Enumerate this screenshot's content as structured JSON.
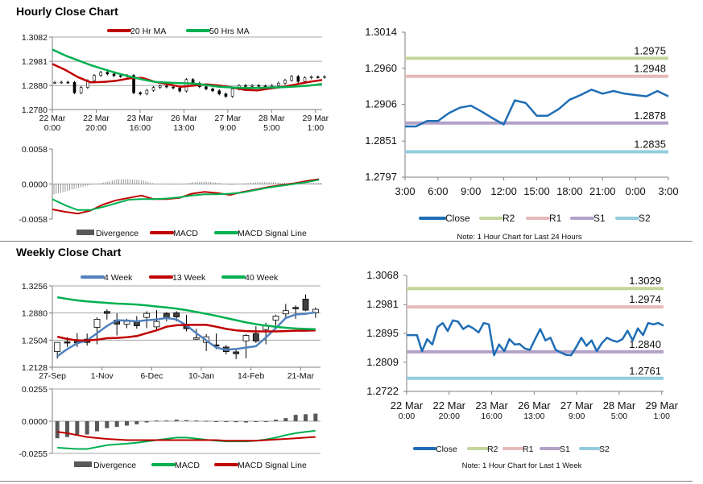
{
  "colors": {
    "ma20": "#c00000",
    "ma50": "#00b050",
    "wk4": "#4f81bd",
    "wk13": "#c00000",
    "wk40": "#00b050",
    "macd_red": "#c00000",
    "macd_green": "#00b050",
    "divergence": "#595959",
    "close": "#1f6eb5",
    "R2": "#c3d69b",
    "R1": "#e6b9b8",
    "S1": "#b3a2c7",
    "S2": "#93cddd",
    "grid": "#a6a6a6"
  },
  "chart_data": [
    {
      "id": "hourly_price",
      "type": "candlestick+line",
      "title": "Hourly Close Chart",
      "grid": true,
      "legend": "top",
      "ylim": [
        1.278,
        1.3082
      ],
      "yticks": [
        "1.3082",
        "1.2981",
        "1.2880",
        "1.2780"
      ],
      "xticks": [
        "22 Mar|0:00",
        "22 Mar|20:00",
        "23 Mar|16:00",
        "26 Mar|13:00",
        "27 Mar|9:00",
        "28 Mar|5:00",
        "29 Mar|1:00"
      ],
      "close": [
        1.2893,
        1.2894,
        1.2893,
        1.285,
        1.2872,
        1.29,
        1.2922,
        1.2935,
        1.2928,
        1.2921,
        1.2918,
        1.2922,
        1.285,
        1.2845,
        1.286,
        1.2872,
        1.2878,
        1.2874,
        1.287,
        1.2857,
        1.2905,
        1.289,
        1.2875,
        1.2866,
        1.2858,
        1.2845,
        1.2835,
        1.2866,
        1.288,
        1.2876,
        1.288,
        1.2878,
        1.2876,
        1.288,
        1.289,
        1.2902,
        1.2918,
        1.2897,
        1.2912,
        1.2916,
        1.2915,
        1.2917
      ],
      "series": [
        {
          "name": "20 Hr MA",
          "color_key": "ma20",
          "values": [
            1.297,
            1.2945,
            1.2915,
            1.2893,
            1.2895,
            1.29,
            1.291,
            1.2912,
            1.2895,
            1.2885,
            1.2875,
            1.288,
            1.2885,
            1.288,
            1.2872,
            1.2862,
            1.286,
            1.2868,
            1.2875,
            1.2885,
            1.2895,
            1.2903
          ]
        },
        {
          "name": "50 Hrs MA",
          "color_key": "ma50",
          "values": [
            1.303,
            1.3005,
            1.2985,
            1.2965,
            1.2948,
            1.2932,
            1.2918,
            1.2905,
            1.2895,
            1.2892,
            1.289,
            1.2888,
            1.2882,
            1.2875,
            1.2872,
            1.287,
            1.287,
            1.2872,
            1.2873,
            1.2876,
            1.288,
            1.2886
          ]
        }
      ]
    },
    {
      "id": "hourly_macd",
      "type": "bar+line",
      "ylim": [
        -0.0058,
        0.0058
      ],
      "yticks": [
        "0.0058",
        "0.0000",
        "-0.0058"
      ],
      "legend": "bottom",
      "divergence": {
        "name": "Divergence",
        "values": [
          -0.0017,
          -0.0012,
          -0.0006,
          -0.0001,
          0.0003,
          0.0008,
          0.0008,
          0.0006,
          0.0,
          -0.0001,
          -0.0001,
          0.0003,
          0.0004,
          0.0002,
          -0.0002,
          0.0001,
          0.0003,
          0.0003,
          0.0002,
          0.0002,
          0.0002,
          0.0002
        ]
      },
      "series": [
        {
          "name": "MACD",
          "color_key": "macd_red",
          "values": [
            -0.0042,
            -0.0046,
            -0.0049,
            -0.0044,
            -0.0034,
            -0.0027,
            -0.0023,
            -0.0019,
            -0.0025,
            -0.0025,
            -0.0023,
            -0.0016,
            -0.0013,
            -0.0015,
            -0.0018,
            -0.0013,
            -0.0009,
            -0.0005,
            -0.0002,
            0.0001,
            0.0005,
            0.0008
          ]
        },
        {
          "name": "MACD Signal Line",
          "color_key": "macd_green",
          "values": [
            -0.0025,
            -0.0035,
            -0.0043,
            -0.0043,
            -0.0038,
            -0.0032,
            -0.0026,
            -0.0025,
            -0.0025,
            -0.0024,
            -0.0022,
            -0.0019,
            -0.0017,
            -0.0017,
            -0.0016,
            -0.0014,
            -0.001,
            -0.0006,
            -0.0003,
            0.0,
            0.0003,
            0.0007
          ]
        }
      ]
    },
    {
      "id": "pivot_24h",
      "type": "line",
      "ylim": [
        1.2797,
        1.3014
      ],
      "yticks": [
        "1.3014",
        "1.2960",
        "1.2906",
        "1.2851",
        "1.2797"
      ],
      "xticks": [
        "3:00",
        "6:00",
        "9:00",
        "12:00",
        "15:00",
        "18:00",
        "21:00",
        "0:00",
        "3:00"
      ],
      "legend": "bottom",
      "note": "Note: 1 Hour Chart for Last 24 Hours",
      "close": {
        "name": "Close",
        "values": [
          1.2873,
          1.2873,
          1.2881,
          1.2881,
          1.2893,
          1.2901,
          1.2904,
          1.2895,
          1.2885,
          1.2876,
          1.2912,
          1.2908,
          1.2889,
          1.2889,
          1.2899,
          1.2913,
          1.292,
          1.2928,
          1.2922,
          1.2926,
          1.2922,
          1.292,
          1.2918,
          1.2926,
          1.2918
        ]
      },
      "levels": [
        {
          "name": "R2",
          "value": 1.2975,
          "label": "1.2975"
        },
        {
          "name": "R1",
          "value": 1.2948,
          "label": "1.2948"
        },
        {
          "name": "S1",
          "value": 1.2878,
          "label": "1.2878"
        },
        {
          "name": "S2",
          "value": 1.2835,
          "label": "1.2835"
        }
      ]
    },
    {
      "id": "weekly_price",
      "type": "candlestick+line",
      "title": "Weekly Close Chart",
      "grid": true,
      "legend": "top",
      "ylim": [
        1.2128,
        1.3256
      ],
      "yticks": [
        "1.3256",
        "1.2880",
        "1.2504",
        "1.2128"
      ],
      "xticks": [
        "27-Sep",
        "1-Nov",
        "6-Dec",
        "10-Jan",
        "14-Feb",
        "21-Mar"
      ],
      "ohlc": [
        [
          1.2345,
          1.2473,
          1.2248,
          1.2473
        ],
        [
          1.248,
          1.2546,
          1.2408,
          1.247
        ],
        [
          1.251,
          1.2602,
          1.2408,
          1.2465
        ],
        [
          1.2517,
          1.2595,
          1.2427,
          1.2472
        ],
        [
          1.2681,
          1.2819,
          1.2446,
          1.2793
        ],
        [
          1.2901,
          1.2931,
          1.2789,
          1.2875
        ],
        [
          1.2782,
          1.2875,
          1.2569,
          1.2726
        ],
        [
          1.2726,
          1.28,
          1.267,
          1.2763
        ],
        [
          1.2763,
          1.2838,
          1.2662,
          1.2703
        ],
        [
          1.2819,
          1.2905,
          1.267,
          1.2875
        ],
        [
          1.2688,
          1.292,
          1.2625,
          1.2763
        ],
        [
          1.2875,
          1.2894,
          1.2763,
          1.2808
        ],
        [
          1.2882,
          1.2905,
          1.2763,
          1.2826
        ],
        [
          1.2715,
          1.2856,
          1.2625,
          1.2662
        ],
        [
          1.2517,
          1.2662,
          1.2509,
          1.2535
        ],
        [
          1.2472,
          1.2587,
          1.2352,
          1.255
        ],
        [
          1.2438,
          1.2595,
          1.2378,
          1.2427
        ],
        [
          1.2408,
          1.2435,
          1.2307,
          1.2345
        ],
        [
          1.2341,
          1.239,
          1.224,
          1.2315
        ],
        [
          1.2494,
          1.2587,
          1.2251,
          1.2569
        ],
        [
          1.2595,
          1.2696,
          1.2465,
          1.2491
        ],
        [
          1.2651,
          1.2744,
          1.2446,
          1.27
        ],
        [
          1.2782,
          1.2857,
          1.2681,
          1.2838
        ],
        [
          1.2868,
          1.3006,
          1.2793,
          1.2913
        ],
        [
          1.2957,
          1.2987,
          1.28,
          1.2939
        ],
        [
          1.3073,
          1.3136,
          1.2905,
          1.292
        ],
        [
          1.2883,
          1.2957,
          1.2811,
          1.2931
        ]
      ],
      "series": [
        {
          "name": "4 Week",
          "color_key": "wk4",
          "values": [
            1.228,
            1.238,
            1.246,
            1.25,
            1.26,
            1.27,
            1.278,
            1.2775,
            1.2765,
            1.278,
            1.279,
            1.281,
            1.279,
            1.271,
            1.26,
            1.25,
            1.24,
            1.237,
            1.238,
            1.24,
            1.242,
            1.254,
            1.267,
            1.281,
            1.286,
            1.287,
            1.289
          ]
        },
        {
          "name": "13 Week",
          "color_key": "wk13",
          "values": [
            1.2551,
            1.252,
            1.25,
            1.25,
            1.251,
            1.253,
            1.2535,
            1.2545,
            1.256,
            1.26,
            1.264,
            1.269,
            1.271,
            1.2715,
            1.2715,
            1.2715,
            1.269,
            1.266,
            1.264,
            1.263,
            1.2625,
            1.2625,
            1.2625,
            1.263,
            1.2635,
            1.2635,
            1.264
          ]
        },
        {
          "name": "40 Week",
          "color_key": "wk40",
          "values": [
            1.3099,
            1.3075,
            1.3055,
            1.304,
            1.303,
            1.302,
            1.301,
            1.3005,
            1.2998,
            1.2985,
            1.297,
            1.2958,
            1.294,
            1.292,
            1.2895,
            1.2868,
            1.284,
            1.281,
            1.278,
            1.275,
            1.2725,
            1.2705,
            1.269,
            1.2675,
            1.2665,
            1.266,
            1.2655
          ]
        }
      ]
    },
    {
      "id": "weekly_macd",
      "type": "bar+line",
      "ylim": [
        -0.0255,
        0.0255
      ],
      "yticks": [
        "0.0255",
        "0.0000",
        "-0.0255"
      ],
      "legend": "bottom",
      "divergence": {
        "name": "Divergence",
        "values": [
          -0.0135,
          -0.0125,
          -0.0115,
          -0.0105,
          -0.008,
          -0.0055,
          -0.0045,
          -0.0035,
          -0.0025,
          -0.001,
          0.0005,
          0.0005,
          0.0012,
          0.0008,
          0.0005,
          0.0003,
          -0.0002,
          -0.0005,
          -0.0008,
          -0.001,
          -0.0006,
          -0.0002,
          0.0012,
          0.0025,
          0.005,
          0.0055,
          0.006
        ]
      },
      "series": [
        {
          "name": "MACD",
          "color_key": "macd_green",
          "values": [
            -0.021,
            -0.0215,
            -0.022,
            -0.022,
            -0.0205,
            -0.019,
            -0.0183,
            -0.0178,
            -0.017,
            -0.016,
            -0.015,
            -0.014,
            -0.013,
            -0.013,
            -0.0138,
            -0.0147,
            -0.0155,
            -0.016,
            -0.016,
            -0.016,
            -0.0155,
            -0.0145,
            -0.013,
            -0.011,
            -0.0095,
            -0.0085,
            -0.0075
          ]
        },
        {
          "name": "MACD Signal Line",
          "color_key": "macd_red",
          "values": [
            -0.0085,
            -0.0095,
            -0.011,
            -0.0125,
            -0.0133,
            -0.014,
            -0.0145,
            -0.015,
            -0.015,
            -0.015,
            -0.015,
            -0.015,
            -0.015,
            -0.015,
            -0.015,
            -0.015,
            -0.015,
            -0.0155,
            -0.0155,
            -0.0155,
            -0.0155,
            -0.015,
            -0.0145,
            -0.014,
            -0.0135,
            -0.013,
            -0.0125
          ]
        }
      ]
    },
    {
      "id": "pivot_week",
      "type": "line",
      "ylim": [
        1.2722,
        1.3068
      ],
      "yticks": [
        "1.3068",
        "1.2981",
        "1.2895",
        "1.2809",
        "1.2722"
      ],
      "xticks": [
        "22 Mar|0:00",
        "22 Mar|20:00",
        "23 Mar|16:00",
        "26 Mar|13:00",
        "27 Mar|9:00",
        "28 Mar|5:00",
        "29 Mar|1:00"
      ],
      "legend": "bottom",
      "note": "Note: 1 Hour Chart for  Last 1 Week",
      "close": {
        "name": "Close",
        "values": [
          1.289,
          1.289,
          1.289,
          1.2842,
          1.2878,
          1.2862,
          1.2914,
          1.2926,
          1.2902,
          1.2934,
          1.293,
          1.2908,
          1.2918,
          1.291,
          1.2898,
          1.2926,
          1.2922,
          1.283,
          1.2862,
          1.2842,
          1.2878,
          1.2862,
          1.2863,
          1.285,
          1.2846,
          1.2878,
          1.2908,
          1.2874,
          1.2882,
          1.2846,
          1.2838,
          1.2831,
          1.283,
          1.2854,
          1.2882,
          1.2858,
          1.2874,
          1.2842,
          1.2866,
          1.2882,
          1.2874,
          1.287,
          1.2878,
          1.2903,
          1.2874,
          1.291,
          1.289,
          1.2926,
          1.2922,
          1.2926,
          1.2918
        ]
      },
      "levels": [
        {
          "name": "R2",
          "value": 1.3029,
          "label": "1.3029"
        },
        {
          "name": "R1",
          "value": 1.2974,
          "label": "1.2974"
        },
        {
          "name": "S1",
          "value": 1.284,
          "label": "1.2840"
        },
        {
          "name": "S2",
          "value": 1.2761,
          "label": "1.2761"
        }
      ]
    }
  ]
}
